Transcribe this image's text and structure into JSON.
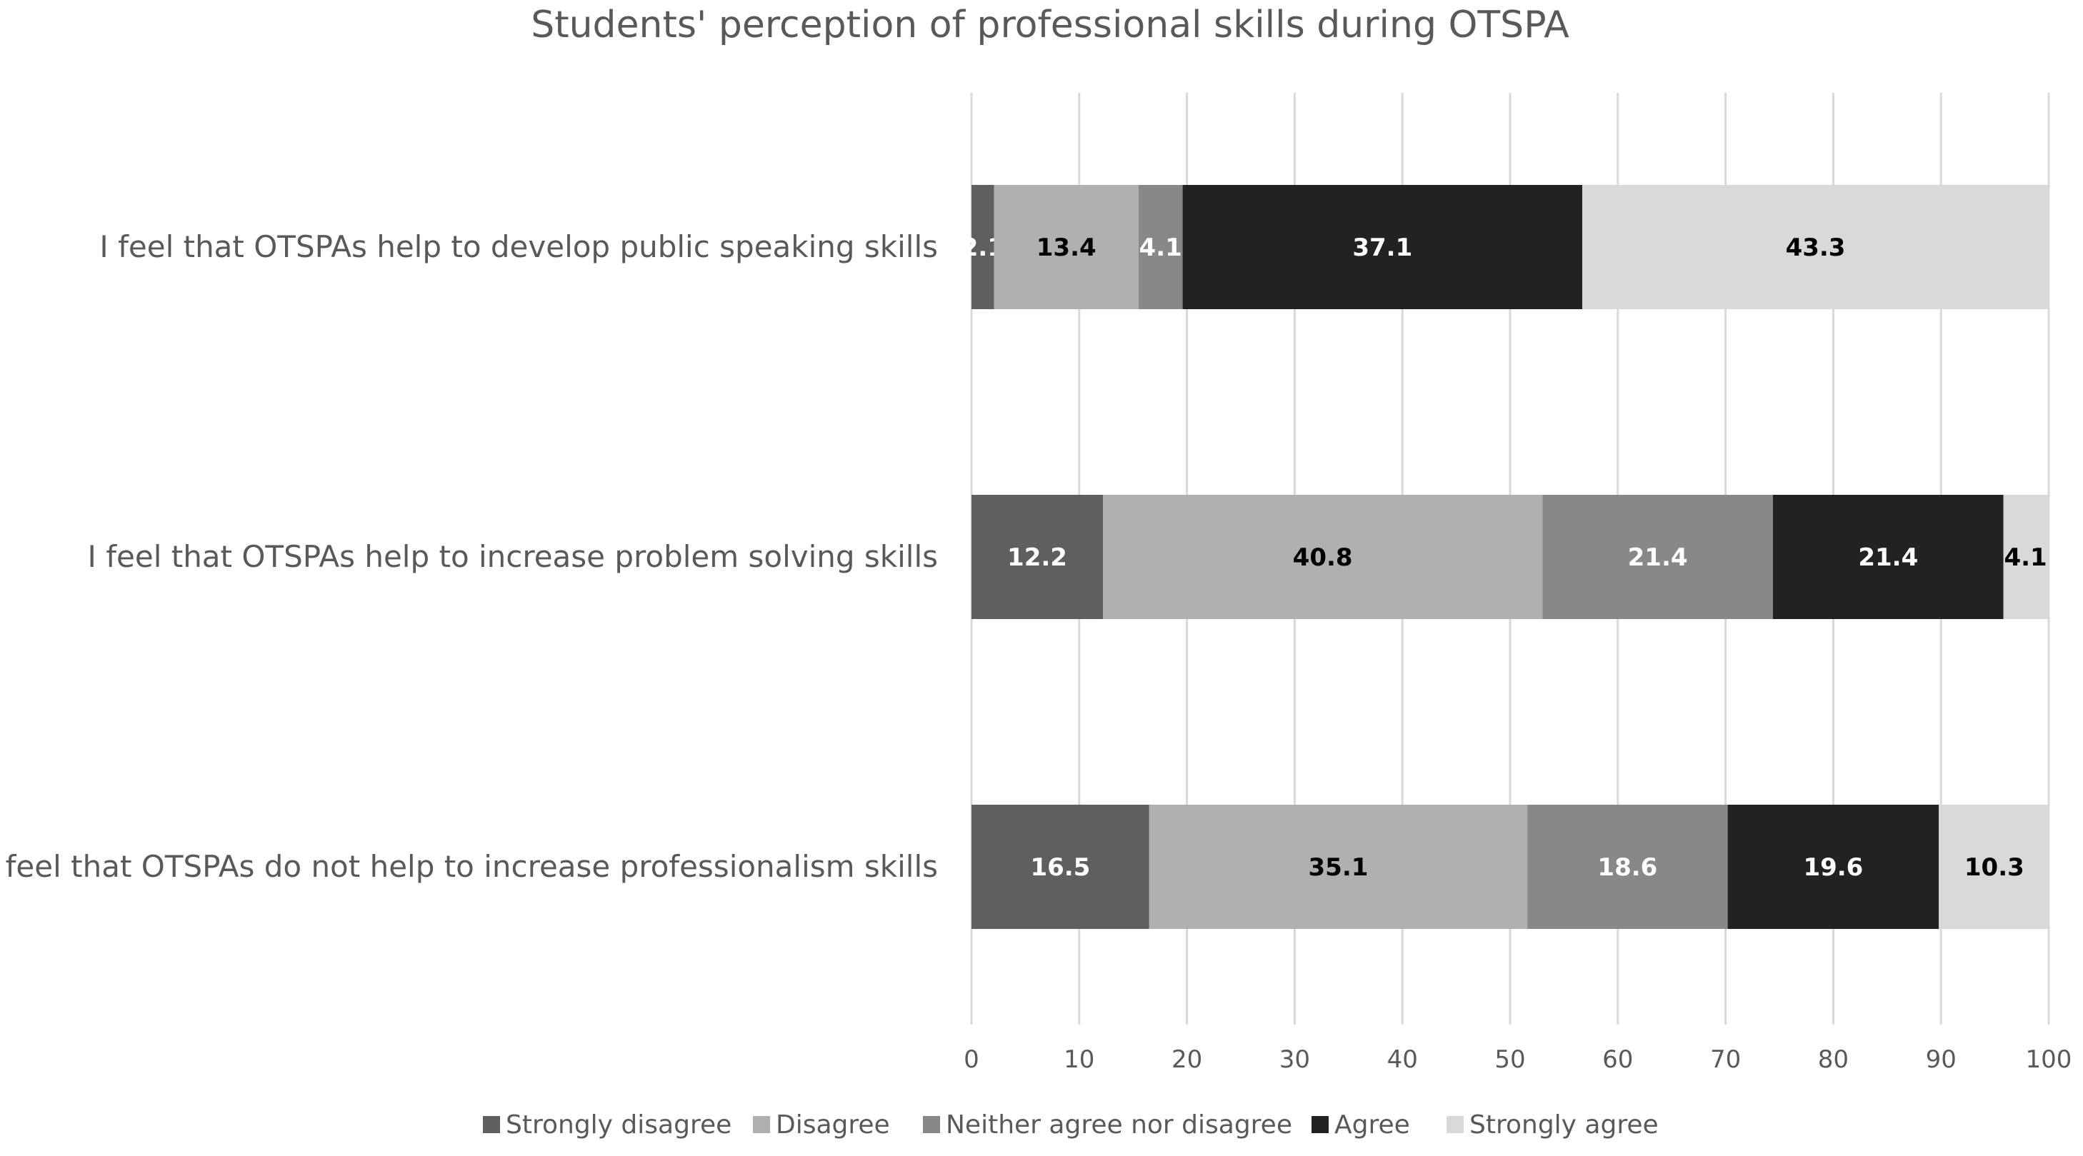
{
  "chart_data": {
    "type": "bar",
    "orientation": "horizontal",
    "stacked": true,
    "title": "Students' perception of professional skills during OTSPA",
    "categories": [
      "I feel that OTSPAs help to develop public speaking skills",
      "I feel that OTSPAs help to increase problem solving skills",
      "I feel that OTSPAs do not help to increase professionalism skills"
    ],
    "series": [
      {
        "name": "Strongly disagree",
        "color": "#5f5f5f",
        "label_color": "#ffffff",
        "values": [
          2.1,
          12.2,
          16.5
        ],
        "labels": [
          "2.1",
          "12.2",
          "16.5"
        ]
      },
      {
        "name": "Disagree",
        "color": "#b0b0b0",
        "label_color": "#000000",
        "values": [
          13.4,
          40.8,
          35.1
        ],
        "labels": [
          "13.4",
          "40.8",
          "35.1"
        ]
      },
      {
        "name": "Neither agree nor disagree",
        "color": "#888888",
        "label_color": "#ffffff",
        "values": [
          4.1,
          21.4,
          18.6
        ],
        "labels": [
          "4.1",
          "21.4",
          "18.6"
        ]
      },
      {
        "name": "Agree",
        "color": "#222222",
        "label_color": "#ffffff",
        "values": [
          37.1,
          21.4,
          19.6
        ],
        "labels": [
          "37.1",
          "21.4",
          "19.6"
        ]
      },
      {
        "name": "Strongly agree",
        "color": "#d9d9d9",
        "label_color": "#000000",
        "values": [
          43.3,
          4.1,
          10.3
        ],
        "labels": [
          "43.3",
          "4.1",
          "10.3"
        ]
      }
    ],
    "xlim": [
      0,
      100
    ],
    "xticks": [
      0,
      10,
      20,
      30,
      40,
      50,
      60,
      70,
      80,
      90,
      100
    ],
    "xtick_labels": [
      "0",
      "10",
      "20",
      "30",
      "40",
      "50",
      "60",
      "70",
      "80",
      "90",
      "100"
    ],
    "grid": true,
    "legend_position": "bottom"
  }
}
